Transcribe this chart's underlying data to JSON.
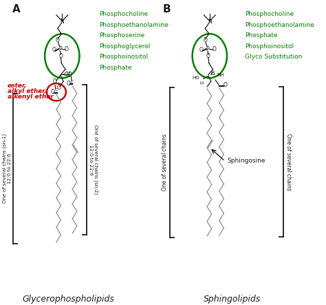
{
  "title_A": "A",
  "title_B": "B",
  "label_A": "Glycerophospholipids",
  "label_B": "Sphingolipids",
  "green_list_A": [
    "Phosphocholine",
    "Phosphoethanolamine",
    "Phosphoserine",
    "Phosphoglycerol",
    "Phosphoinositol",
    "Phosphate"
  ],
  "green_list_B": [
    "Phosphocholine",
    "Phosphoethanolamine",
    "Phosphate",
    "Phosphoinositol",
    "Glyco Substitution"
  ],
  "red_label_line1": "ester,",
  "red_label_line2": "alkyl ether,",
  "red_label_line3": "alkenyl ether",
  "chain_label_sn1_line1": "One of several chains (sn-1)",
  "chain_label_sn1_line2": "12:0 to 22:6",
  "chain_label_sn2_line1": "One of several chains (sn-2)",
  "chain_label_sn2_line2": "12:0 to 22:6",
  "chain_label_B_left": "One of several chains",
  "chain_label_B_right": "One of several chains",
  "sphingosine_label": "Sphingosine",
  "green_color": "#008000",
  "red_color": "#cc0000",
  "black_color": "#1a1a1a",
  "gray_color": "#888888",
  "bg_color": "#ffffff"
}
